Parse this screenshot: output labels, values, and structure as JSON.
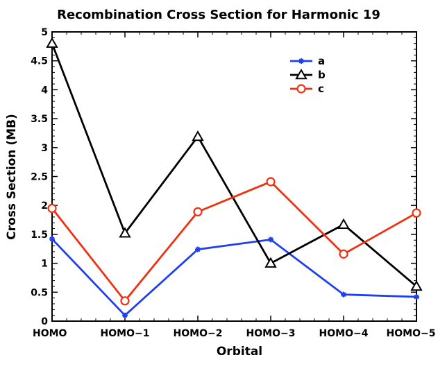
{
  "chart_data": {
    "type": "line",
    "title": "Recombination Cross Section for Harmonic 19",
    "xlabel": "Orbital",
    "ylabel": "Cross Section (MB)",
    "categories": [
      "HOMO",
      "HOMO−1",
      "HOMO−2",
      "HOMO−3",
      "HOMO−4",
      "HOMO−5"
    ],
    "ylim": [
      0,
      5
    ],
    "yticks": [
      "0",
      "0.5",
      "1",
      "1.5",
      "2",
      "2.5",
      "3",
      "3.5",
      "4",
      "4.5",
      "5"
    ],
    "grid": false,
    "legend_position": "top-right",
    "series": [
      {
        "name": "a",
        "color": "#1f3ff0",
        "marker": "asterisk",
        "values": [
          1.42,
          0.1,
          1.24,
          1.41,
          0.46,
          0.42
        ]
      },
      {
        "name": "b",
        "color": "#000000",
        "marker": "triangle",
        "values": [
          4.8,
          1.52,
          3.19,
          1.0,
          1.67,
          0.6
        ]
      },
      {
        "name": "c",
        "color": "#f0300f",
        "marker": "circle",
        "values": [
          1.95,
          0.35,
          1.89,
          2.41,
          1.16,
          1.87
        ]
      }
    ]
  }
}
